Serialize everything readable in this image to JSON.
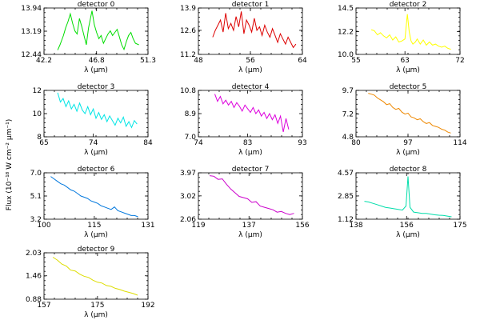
{
  "figure": {
    "ylabel": "Flux (10⁻¹⁸ W cm⁻² μm⁻¹)"
  },
  "chart_data": [
    {
      "type": "line",
      "title": "detector 0",
      "xlabel": "λ (μm)",
      "color": "#00dd00",
      "xlim": [
        42.2,
        51.3
      ],
      "ylim": [
        12.44,
        13.94
      ],
      "xticks": [
        "42.2",
        "46.8",
        "51.3"
      ],
      "yticks": [
        "12.44",
        "13.19",
        "13.94"
      ],
      "x": [
        43.4,
        43.6,
        43.9,
        44.1,
        44.3,
        44.5,
        44.7,
        44.9,
        45.1,
        45.3,
        45.5,
        45.7,
        45.9,
        46.1,
        46.4,
        46.6,
        46.8,
        47.0,
        47.2,
        47.4,
        47.6,
        47.8,
        48.0,
        48.2,
        48.4,
        48.6,
        48.8,
        49.0,
        49.2,
        49.4,
        49.6,
        49.8,
        50.0,
        50.2,
        50.5
      ],
      "y": [
        12.58,
        12.75,
        13.05,
        13.3,
        13.5,
        13.75,
        13.45,
        13.2,
        13.1,
        13.6,
        13.35,
        13.05,
        12.75,
        13.3,
        13.85,
        13.4,
        13.15,
        12.95,
        13.05,
        12.8,
        12.95,
        13.1,
        13.2,
        13.05,
        13.15,
        13.25,
        13.0,
        12.75,
        12.6,
        12.85,
        13.05,
        13.15,
        12.95,
        12.8,
        12.75
      ]
    },
    {
      "type": "line",
      "title": "detector 1",
      "xlabel": "λ (μm)",
      "color": "#dd0000",
      "xlim": [
        48,
        64
      ],
      "ylim": [
        11.2,
        13.9
      ],
      "xticks": [
        "48",
        "56",
        "64"
      ],
      "yticks": [
        "11.2",
        "12.6",
        "13.9"
      ],
      "x": [
        50.2,
        50.6,
        51.0,
        51.4,
        51.8,
        52.2,
        52.6,
        53.0,
        53.4,
        53.8,
        54.2,
        54.6,
        55.0,
        55.4,
        55.8,
        56.2,
        56.6,
        57.0,
        57.4,
        57.8,
        58.2,
        58.6,
        59.0,
        59.4,
        59.8,
        60.2,
        60.6,
        61.0,
        61.4,
        61.8,
        62.2,
        62.6,
        63.0
      ],
      "y": [
        12.2,
        12.6,
        12.9,
        13.2,
        12.5,
        13.6,
        12.7,
        13.0,
        12.6,
        13.4,
        12.8,
        13.7,
        12.4,
        13.2,
        12.9,
        12.5,
        13.3,
        12.6,
        12.8,
        12.3,
        12.9,
        12.5,
        12.2,
        12.7,
        12.3,
        11.9,
        12.4,
        12.1,
        11.8,
        12.2,
        11.9,
        11.6,
        11.8
      ]
    },
    {
      "type": "line",
      "title": "detector 2",
      "xlabel": "λ (μm)",
      "color": "#ffff00",
      "xlim": [
        55,
        72
      ],
      "ylim": [
        10.0,
        14.5
      ],
      "xticks": [
        "55",
        "63",
        "72"
      ],
      "yticks": [
        "10.0",
        "12.2",
        "14.5"
      ],
      "x": [
        57.5,
        58.0,
        58.5,
        59.0,
        59.5,
        60.0,
        60.5,
        61.0,
        61.5,
        62.0,
        62.5,
        63.0,
        63.4,
        63.7,
        64.0,
        64.3,
        64.7,
        65.0,
        65.5,
        66.0,
        66.5,
        67.0,
        67.5,
        68.0,
        68.5,
        69.0,
        69.5,
        70.0,
        70.5
      ],
      "y": [
        12.4,
        12.3,
        11.9,
        12.1,
        11.8,
        11.6,
        11.9,
        11.4,
        11.7,
        11.2,
        11.3,
        11.5,
        13.9,
        12.2,
        11.3,
        11.0,
        11.2,
        11.5,
        11.0,
        11.4,
        10.9,
        11.2,
        10.9,
        11.0,
        10.8,
        10.7,
        10.8,
        10.6,
        10.5
      ]
    },
    {
      "type": "line",
      "title": "detector 3",
      "xlabel": "λ (μm)",
      "color": "#00e5e5",
      "xlim": [
        65,
        84
      ],
      "ylim": [
        8,
        12
      ],
      "xticks": [
        "65",
        "74",
        "84"
      ],
      "yticks": [
        "8",
        "10",
        "12"
      ],
      "x": [
        67.5,
        68.0,
        68.5,
        69.0,
        69.5,
        70.0,
        70.5,
        71.0,
        71.5,
        72.0,
        72.5,
        73.0,
        73.5,
        74.0,
        74.5,
        75.0,
        75.5,
        76.0,
        76.5,
        77.0,
        77.5,
        78.0,
        78.5,
        79.0,
        79.5,
        80.0,
        80.5,
        81.0,
        81.5,
        82.0
      ],
      "y": [
        11.8,
        11.0,
        11.3,
        10.6,
        11.1,
        10.4,
        10.8,
        10.2,
        10.9,
        10.3,
        10.0,
        10.6,
        9.9,
        10.4,
        9.6,
        10.1,
        9.5,
        9.9,
        9.3,
        9.8,
        9.4,
        9.0,
        9.6,
        9.2,
        9.7,
        8.9,
        9.3,
        8.8,
        9.4,
        9.1
      ]
    },
    {
      "type": "line",
      "title": "detector 4",
      "xlabel": "λ (μm)",
      "color": "#dd00dd",
      "xlim": [
        74,
        93
      ],
      "ylim": [
        7.0,
        10.8
      ],
      "xticks": [
        "74",
        "83",
        "93"
      ],
      "yticks": [
        "7.0",
        "8.9",
        "10.8"
      ],
      "x": [
        77.0,
        77.5,
        78.0,
        78.5,
        79.0,
        79.5,
        80.0,
        80.5,
        81.0,
        81.5,
        82.0,
        82.5,
        83.0,
        83.5,
        84.0,
        84.5,
        85.0,
        85.5,
        86.0,
        86.5,
        87.0,
        87.5,
        88.0,
        88.5,
        89.0,
        89.5,
        90.0,
        90.5
      ],
      "y": [
        10.5,
        9.9,
        10.3,
        9.7,
        10.0,
        9.6,
        9.9,
        9.4,
        9.8,
        9.5,
        9.1,
        9.6,
        9.3,
        9.0,
        9.4,
        8.9,
        9.2,
        8.7,
        9.0,
        8.5,
        8.9,
        8.4,
        8.8,
        8.1,
        8.7,
        7.4,
        8.5,
        7.6
      ]
    },
    {
      "type": "line",
      "title": "detector 5",
      "xlabel": "λ (μm)",
      "color": "#ee8800",
      "xlim": [
        80,
        114
      ],
      "ylim": [
        4.8,
        9.7
      ],
      "xticks": [
        "80",
        "97",
        "114"
      ],
      "yticks": [
        "4.8",
        "7.2",
        "9.7"
      ],
      "x": [
        84,
        85,
        86,
        87,
        88,
        89,
        90,
        91,
        92,
        93,
        94,
        95,
        96,
        97,
        98,
        99,
        100,
        101,
        102,
        103,
        104,
        105,
        106,
        107,
        108,
        109,
        110,
        111
      ],
      "y": [
        9.4,
        9.3,
        9.2,
        8.9,
        8.7,
        8.5,
        8.2,
        8.3,
        7.9,
        7.7,
        7.8,
        7.4,
        7.2,
        7.3,
        6.9,
        6.8,
        6.6,
        6.7,
        6.4,
        6.2,
        6.3,
        6.0,
        5.9,
        5.8,
        5.6,
        5.5,
        5.3,
        5.2
      ]
    },
    {
      "type": "line",
      "title": "detector 6",
      "xlabel": "λ (μm)",
      "color": "#0077dd",
      "xlim": [
        100,
        131
      ],
      "ylim": [
        3.2,
        7.0
      ],
      "xticks": [
        "100",
        "115",
        "131"
      ],
      "yticks": [
        "3.2",
        "5.1",
        "7.0"
      ],
      "x": [
        102,
        103,
        104,
        105,
        106,
        107,
        108,
        109,
        110,
        111,
        112,
        113,
        114,
        115,
        116,
        117,
        118,
        119,
        120,
        121,
        122,
        123,
        124,
        125,
        126,
        127,
        128
      ],
      "y": [
        6.7,
        6.5,
        6.3,
        6.1,
        6.0,
        5.8,
        5.6,
        5.5,
        5.3,
        5.1,
        5.0,
        4.9,
        4.7,
        4.6,
        4.5,
        4.3,
        4.2,
        4.1,
        4.0,
        4.2,
        3.9,
        3.8,
        3.7,
        3.6,
        3.5,
        3.5,
        3.4
      ]
    },
    {
      "type": "line",
      "title": "detector 7",
      "xlabel": "λ (μm)",
      "color": "#cc00cc",
      "xlim": [
        119,
        156
      ],
      "ylim": [
        2.06,
        3.97
      ],
      "xticks": [
        "119",
        "137",
        "156"
      ],
      "yticks": [
        "2.06",
        "3.02",
        "3.97"
      ],
      "x": [
        123,
        124.5,
        126,
        127.5,
        129,
        130.5,
        132,
        133.5,
        135,
        136.5,
        138,
        139.5,
        141,
        142.5,
        144,
        145.5,
        147,
        148.5,
        150,
        151.5,
        153
      ],
      "y": [
        3.85,
        3.83,
        3.7,
        3.72,
        3.5,
        3.3,
        3.15,
        3.0,
        2.95,
        2.9,
        2.75,
        2.78,
        2.6,
        2.55,
        2.5,
        2.45,
        2.35,
        2.38,
        2.3,
        2.25,
        2.3
      ]
    },
    {
      "type": "line",
      "title": "detector 8",
      "xlabel": "λ (μm)",
      "color": "#00ddaa",
      "xlim": [
        138,
        175
      ],
      "ylim": [
        1.12,
        4.57
      ],
      "xticks": [
        "138",
        "156",
        "175"
      ],
      "yticks": [
        "1.12",
        "2.85",
        "4.57"
      ],
      "x": [
        141,
        142.5,
        144,
        145.5,
        147,
        148.5,
        150,
        151.5,
        153,
        154.5,
        155.8,
        156.5,
        157.2,
        158.5,
        160,
        161.5,
        163,
        164.5,
        166,
        167.5,
        169,
        170.5,
        172
      ],
      "y": [
        2.45,
        2.4,
        2.3,
        2.2,
        2.1,
        2.0,
        1.95,
        1.9,
        1.85,
        1.8,
        2.1,
        4.3,
        2.0,
        1.65,
        1.6,
        1.55,
        1.55,
        1.5,
        1.45,
        1.42,
        1.4,
        1.35,
        1.3
      ]
    },
    {
      "type": "line",
      "title": "detector 9",
      "xlabel": "λ (μm)",
      "color": "#dddd00",
      "xlim": [
        157,
        192
      ],
      "ylim": [
        0.88,
        2.03
      ],
      "xticks": [
        "157",
        "175",
        "192"
      ],
      "yticks": [
        "0.88",
        "1.46",
        "2.03"
      ],
      "x": [
        160,
        161.5,
        163,
        164.5,
        166,
        167.5,
        169,
        170.5,
        172,
        173.5,
        175,
        176.5,
        178,
        179.5,
        181,
        182.5,
        184,
        185.5,
        187,
        188.5
      ],
      "y": [
        1.92,
        1.85,
        1.75,
        1.7,
        1.6,
        1.58,
        1.5,
        1.45,
        1.42,
        1.35,
        1.3,
        1.28,
        1.22,
        1.2,
        1.15,
        1.12,
        1.08,
        1.05,
        1.02,
        0.98
      ]
    }
  ]
}
